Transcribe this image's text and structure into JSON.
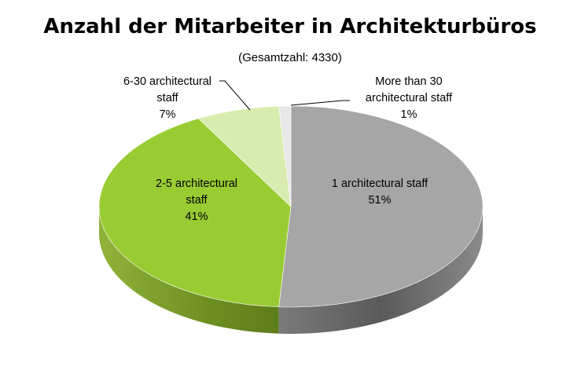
{
  "chart_data": {
    "type": "pie",
    "title": "Anzahl der Mitarbeiter in Architekturbüros",
    "subtitle": "(Gesamtzahl: 4330)",
    "slices": [
      {
        "label_lines": [
          "1 architectural  staff"
        ],
        "percent_text": "51%",
        "value": 51,
        "color": "#a6a6a6",
        "side_color": "#595959"
      },
      {
        "label_lines": [
          "2-5 architectural",
          "staff"
        ],
        "percent_text": "41%",
        "value": 41,
        "color": "#99cc33",
        "side_color": "#6b8e23"
      },
      {
        "label_lines": [
          "6-30 architectural",
          "staff"
        ],
        "percent_text": "7%",
        "value": 7,
        "color": "#d9ecb0",
        "side_color": "#a9bf78"
      },
      {
        "label_lines": [
          "More than 30",
          "architectural staff"
        ],
        "percent_text": "1%",
        "value": 1,
        "color": "#e8e8e8",
        "side_color": "#b0b0b0"
      }
    ],
    "legend": "none",
    "style": "3d"
  }
}
